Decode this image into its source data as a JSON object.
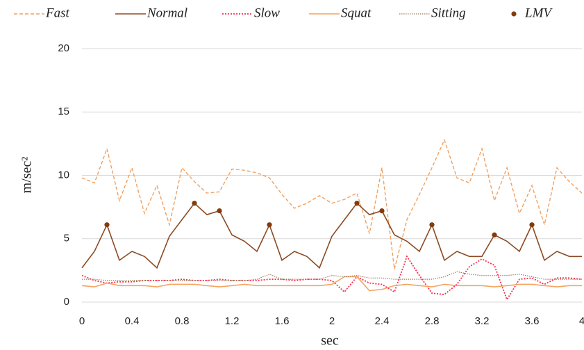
{
  "chart_data": {
    "type": "line",
    "xlabel": "sec",
    "ylabel": "m/sec²",
    "x": [
      0,
      0.1,
      0.2,
      0.3,
      0.4,
      0.5,
      0.6,
      0.7,
      0.8,
      0.9,
      1.0,
      1.1,
      1.2,
      1.3,
      1.4,
      1.5,
      1.6,
      1.7,
      1.8,
      1.9,
      2.0,
      2.1,
      2.2,
      2.3,
      2.4,
      2.5,
      2.6,
      2.7,
      2.8,
      2.9,
      3.0,
      3.1,
      3.2,
      3.3,
      3.4,
      3.5,
      3.6,
      3.7,
      3.8,
      3.9,
      4.0
    ],
    "series": [
      {
        "name": "Fast",
        "color": "#f0a060",
        "style": "dashed",
        "values": [
          9.8,
          9.4,
          12.1,
          8.0,
          10.6,
          7.0,
          9.2,
          6.1,
          10.6,
          9.5,
          8.6,
          8.7,
          10.5,
          10.4,
          10.2,
          9.8,
          8.5,
          7.4,
          7.8,
          8.4,
          7.8,
          8.1,
          8.6,
          5.4,
          10.6,
          2.6,
          6.5,
          8.5,
          10.6,
          12.8,
          9.8,
          9.4,
          12.1,
          8.0,
          10.6,
          7.0,
          9.2,
          6.1,
          10.6,
          9.5,
          8.6
        ]
      },
      {
        "name": "Normal",
        "color": "#8b4a22",
        "style": "solid",
        "values": [
          2.7,
          4.0,
          6.1,
          3.3,
          4.0,
          3.6,
          2.7,
          5.2,
          6.5,
          7.8,
          6.9,
          7.2,
          5.3,
          4.8,
          4.0,
          6.1,
          3.3,
          4.0,
          3.6,
          2.7,
          5.2,
          6.5,
          7.8,
          6.9,
          7.2,
          5.3,
          4.8,
          4.0,
          6.1,
          3.3,
          4.0,
          3.6,
          3.6,
          5.3,
          4.8,
          4.0,
          6.1,
          3.3,
          4.0,
          3.6,
          3.6
        ]
      },
      {
        "name": "Slow",
        "color": "#ff2a4a",
        "style": "dotted",
        "values": [
          2.1,
          1.7,
          1.5,
          1.6,
          1.6,
          1.7,
          1.7,
          1.7,
          1.8,
          1.7,
          1.7,
          1.8,
          1.7,
          1.7,
          1.7,
          1.8,
          1.8,
          1.7,
          1.8,
          1.8,
          1.7,
          0.8,
          2.0,
          1.5,
          1.4,
          0.8,
          3.6,
          2.1,
          0.7,
          0.6,
          1.4,
          2.8,
          3.4,
          2.9,
          0.2,
          1.8,
          1.9,
          1.4,
          1.9,
          1.9,
          1.8
        ]
      },
      {
        "name": "Squat",
        "color": "#f4a460",
        "style": "solid",
        "values": [
          1.3,
          1.2,
          1.5,
          1.3,
          1.3,
          1.3,
          1.2,
          1.4,
          1.4,
          1.4,
          1.3,
          1.2,
          1.3,
          1.4,
          1.3,
          1.3,
          1.3,
          1.3,
          1.3,
          1.3,
          1.4,
          2.0,
          2.0,
          0.9,
          1.0,
          1.3,
          1.4,
          1.3,
          1.2,
          1.4,
          1.3,
          1.3,
          1.3,
          1.2,
          1.3,
          1.4,
          1.4,
          1.3,
          1.2,
          1.3,
          1.3
        ]
      },
      {
        "name": "Sitting",
        "color": "#9c7a5a",
        "style": "dotted-thin",
        "values": [
          1.8,
          1.8,
          1.7,
          1.7,
          1.7,
          1.7,
          1.7,
          1.7,
          1.7,
          1.7,
          1.7,
          1.7,
          1.7,
          1.7,
          1.8,
          2.2,
          1.8,
          1.8,
          1.8,
          1.8,
          2.1,
          2.0,
          2.1,
          1.9,
          1.9,
          1.8,
          1.8,
          1.8,
          1.8,
          2.0,
          2.4,
          2.2,
          2.1,
          2.1,
          2.1,
          2.2,
          2.0,
          1.8,
          1.8,
          1.8,
          1.8
        ]
      },
      {
        "name": "LMV",
        "color": "#843c0c",
        "type": "scatter",
        "x": [
          0.2,
          0.9,
          1.1,
          1.5,
          2.2,
          2.4,
          2.8,
          3.3,
          3.6
        ],
        "values": [
          6.1,
          7.8,
          7.2,
          6.1,
          7.8,
          7.2,
          6.1,
          5.3,
          6.1
        ]
      }
    ],
    "xlim": [
      0,
      4
    ],
    "xticks": [
      0,
      0.4,
      0.8,
      1.2,
      1.6,
      2,
      2.4,
      2.8,
      3.2,
      3.6,
      4
    ],
    "ylim": [
      0,
      20
    ],
    "yticks": [
      0,
      5,
      10,
      15,
      20
    ],
    "grid": true
  }
}
